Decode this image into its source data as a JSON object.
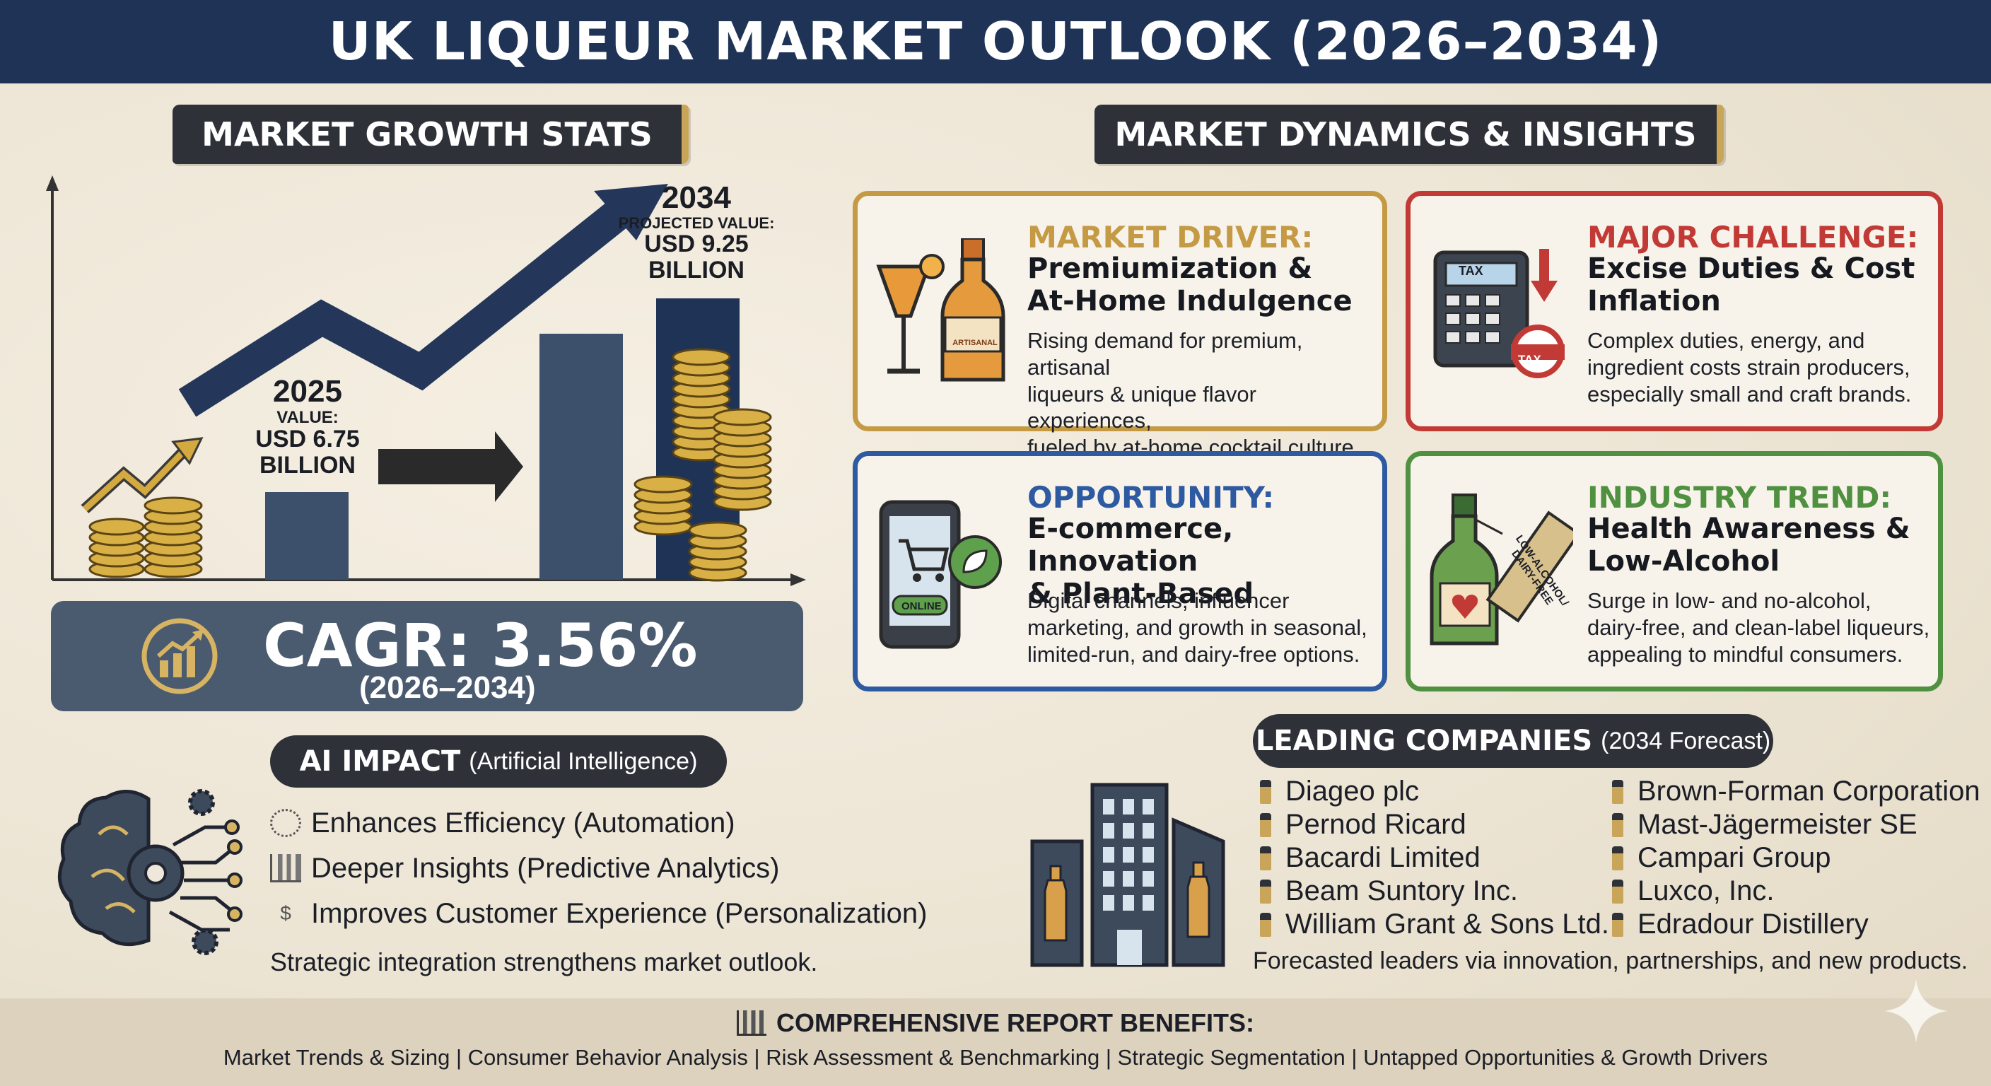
{
  "title": "UK LIQUEUR MARKET OUTLOOK (2026–2034)",
  "growth": {
    "heading": "MARKET GROWTH STATS",
    "year_2025": "2025",
    "label_2025": "VALUE:",
    "value_2025": "USD 6.75",
    "unit_2025": "BILLION",
    "year_2034": "2034",
    "label_2034": "PROJECTED VALUE:",
    "value_2034": "USD 9.25",
    "unit_2034": "BILLION",
    "cagr": "CAGR: 3.56%",
    "cagr_period": "(2026–2034)"
  },
  "dynamics": {
    "heading": "MARKET DYNAMICS & INSIGHTS",
    "cards": [
      {
        "title": "MARKET DRIVER:",
        "head1": "Premiumization &",
        "head2": "At-Home Indulgence",
        "body1": "Rising demand for premium, artisanal",
        "body2": "liqueurs & unique flavor experiences,",
        "body3": "fueled by at-home cocktail culture.",
        "color": "#c49a45",
        "icon_label": "ARTISANAL"
      },
      {
        "title": "MAJOR CHALLENGE:",
        "head1": "Excise Duties & Cost",
        "head2": "Inflation",
        "body1": "Complex duties, energy, and",
        "body2": "ingredient costs strain producers,",
        "body3": "especially small and craft brands.",
        "color": "#c23a35",
        "icon_label": "TAX"
      },
      {
        "title": "OPPORTUNITY:",
        "head1": "E-commerce, Innovation",
        "head2": "& Plant-Based",
        "body1": "Digital channels, influencer",
        "body2": "marketing, and growth in seasonal,",
        "body3": "limited-run, and dairy-free options.",
        "color": "#2d5aa0",
        "icon_label": "ONLINE"
      },
      {
        "title": "INDUSTRY TREND:",
        "head1": "Health Awareness &",
        "head2": "Low-Alcohol",
        "body1": "Surge in low- and no-alcohol,",
        "body2": "dairy-free, and clean-label liqueurs,",
        "body3": "appealing to mindful consumers.",
        "color": "#4f9140",
        "icon_label": "LOW-ALCOHOL/ DAIRY-FREE"
      }
    ]
  },
  "ai": {
    "heading_bold": "AI IMPACT",
    "heading_rest": "(Artificial Intelligence)",
    "items": [
      "Enhances Efficiency (Automation)",
      "Deeper Insights (Predictive Analytics)",
      "Improves Customer Experience (Personalization)"
    ],
    "note": "Strategic integration strengthens market outlook."
  },
  "companies": {
    "heading_bold": "LEADING COMPANIES",
    "heading_rest": "(2034 Forecast)",
    "left": [
      "Diageo plc",
      "Pernod Ricard",
      "Bacardi Limited",
      "Beam Suntory Inc.",
      "William Grant & Sons Ltd."
    ],
    "right": [
      "Brown-Forman Corporation",
      "Mast-Jägermeister SE",
      "Campari Group",
      "Luxco, Inc.",
      "Edradour Distillery"
    ],
    "note": "Forecasted leaders via innovation, partnerships, and new products."
  },
  "footer": {
    "heading": "COMPREHENSIVE REPORT BENEFITS:",
    "items": "Market Trends & Sizing | Consumer Behavior Analysis | Risk Assessment & Benchmarking | Strategic Segmentation | Untapped Opportunities & Growth Drivers"
  },
  "colors": {
    "navy": "#1f3356",
    "dark": "#2e3138",
    "slate": "#4a5b70",
    "gold": "#c9a55a"
  }
}
